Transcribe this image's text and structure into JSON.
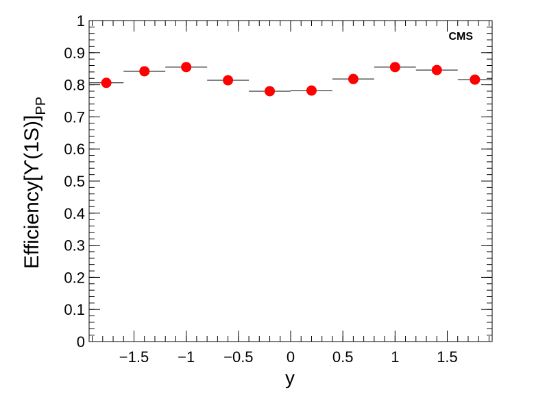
{
  "chart_data": {
    "type": "scatter",
    "x_label": "y",
    "y_label": "Efficiency[ϒ(1S)]",
    "y_label_sub": "PP",
    "annotation": "CMS",
    "x": [
      -1.765,
      -1.4,
      -1.0,
      -0.6,
      -0.2,
      0.2,
      0.6,
      1.0,
      1.4,
      1.765
    ],
    "xerr": [
      0.165,
      0.2,
      0.2,
      0.2,
      0.2,
      0.2,
      0.2,
      0.2,
      0.2,
      0.165
    ],
    "series": [
      {
        "name": "Efficiency",
        "color": "#ff0000",
        "values": [
          0.806,
          0.842,
          0.855,
          0.814,
          0.78,
          0.782,
          0.818,
          0.855,
          0.846,
          0.816
        ]
      }
    ],
    "xlim": [
      -1.93,
      1.93
    ],
    "ylim": [
      0,
      1
    ],
    "xticks": [
      {
        "value": -1.5,
        "label": "−1.5"
      },
      {
        "value": -1,
        "label": "−1"
      },
      {
        "value": -0.5,
        "label": "−0.5"
      },
      0,
      0.5,
      1,
      1.5
    ],
    "yticks": [
      0,
      0.1,
      0.2,
      0.3,
      0.4,
      0.5,
      0.6,
      0.7,
      0.8,
      0.9,
      1
    ]
  }
}
